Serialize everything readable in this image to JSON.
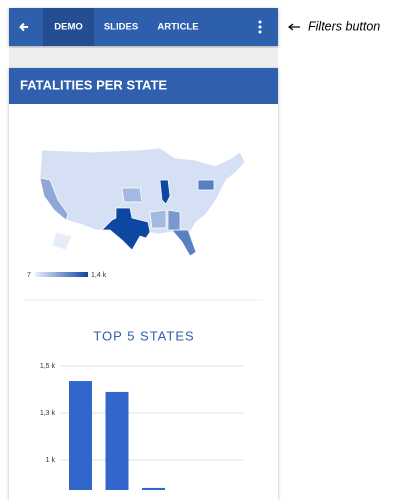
{
  "nav": {
    "tabs": [
      "DEMO",
      "SLIDES",
      "ARTICLE"
    ]
  },
  "annotation": "Filters button",
  "card": {
    "title": "FATALITIES PER STATE",
    "legend": {
      "min": "7",
      "max": "1,4 k"
    },
    "chart_data": {
      "type": "bar",
      "title": "TOP 5 STATES",
      "categories": [
        null,
        null,
        null
      ],
      "values": [
        1420,
        1362,
        851
      ],
      "color": "#3366cc",
      "ylim": [
        840,
        1500
      ],
      "yticks": [
        {
          "value": 1500,
          "label": "1,5 k"
        },
        {
          "value": 1250,
          "label": "1,3 k"
        },
        {
          "value": 1000,
          "label": "1 k"
        }
      ],
      "grid": true
    }
  }
}
